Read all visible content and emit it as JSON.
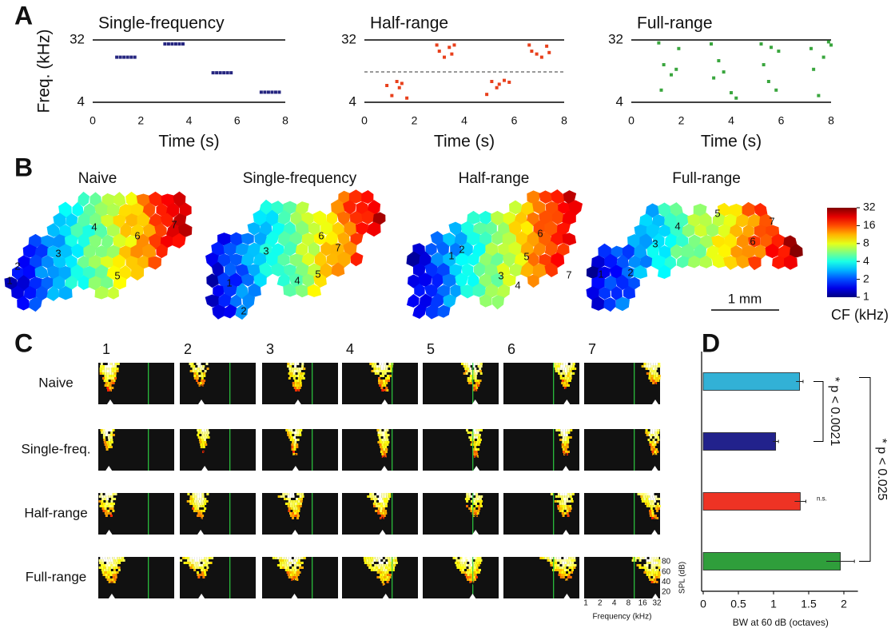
{
  "panel_labels": [
    "A",
    "B",
    "C",
    "D"
  ],
  "chart_data": [
    {
      "type": "scatter",
      "title": "Single-frequency",
      "xlabel": "Time (s)",
      "ylabel": "Freq. (kHz)",
      "x": [
        1.0,
        1.15,
        1.3,
        1.45,
        1.6,
        1.75,
        3.0,
        3.15,
        3.3,
        3.45,
        3.6,
        3.75,
        5.0,
        5.15,
        5.3,
        5.45,
        5.6,
        5.75,
        7.0,
        7.15,
        7.3,
        7.45,
        7.6,
        7.75
      ],
      "values": [
        18,
        18,
        18,
        18,
        18,
        18,
        28,
        28,
        28,
        28,
        28,
        28,
        10.7,
        10.7,
        10.7,
        10.7,
        10.7,
        10.7,
        5.6,
        5.6,
        5.6,
        5.6,
        5.6,
        5.6
      ],
      "color": "#262680",
      "xlim": [
        0,
        8
      ],
      "xticks": [
        0,
        2,
        4,
        6,
        8
      ],
      "ylim": [
        4,
        32
      ],
      "yticks": [
        4,
        32
      ],
      "log_y": true
    },
    {
      "type": "scatter",
      "title": "Half-range",
      "xlabel": "Time (s)",
      "x": [
        0.9,
        1.1,
        1.3,
        1.4,
        1.5,
        1.7,
        2.9,
        3.0,
        3.2,
        3.4,
        3.5,
        3.6,
        4.9,
        5.1,
        5.3,
        5.4,
        5.6,
        5.8,
        6.6,
        6.7,
        6.9,
        7.1,
        7.3,
        7.4
      ],
      "values": [
        7,
        5,
        8,
        6.5,
        7.5,
        4.6,
        27,
        22,
        18,
        25,
        20,
        27,
        5.2,
        8,
        6.5,
        7.3,
        8.3,
        7.8,
        27,
        22,
        20,
        18,
        26,
        21
      ],
      "color": "#e8401c",
      "xlim": [
        0,
        8
      ],
      "xticks": [
        0,
        2,
        4,
        6,
        8
      ],
      "ylim": [
        4,
        32
      ],
      "yticks": [
        4,
        32
      ],
      "log_y": true,
      "reference_line": 11
    },
    {
      "type": "scatter",
      "title": "Full-range",
      "xlabel": "Time (s)",
      "x": [
        1.1,
        1.2,
        1.3,
        1.6,
        1.8,
        1.9,
        3.2,
        3.3,
        3.5,
        3.7,
        4.0,
        4.2,
        5.2,
        5.3,
        5.5,
        5.6,
        5.8,
        5.9,
        7.2,
        7.3,
        7.5,
        7.7,
        7.9,
        8.0
      ],
      "values": [
        29,
        6,
        14,
        10,
        12,
        24,
        28,
        9,
        16,
        11,
        5.5,
        4.6,
        28,
        14,
        8,
        25,
        6,
        22,
        24,
        12,
        5,
        18,
        30,
        27
      ],
      "color": "#3aa63e",
      "xlim": [
        0,
        8
      ],
      "xticks": [
        0,
        2,
        4,
        6,
        8
      ],
      "ylim": [
        4,
        32
      ],
      "yticks": [
        4,
        32
      ],
      "log_y": true
    },
    {
      "type": "bar",
      "orientation": "horizontal",
      "xlabel": "BW at 60 dB (octaves)",
      "categories": [
        null,
        null,
        null,
        null
      ],
      "values": [
        1.37,
        1.03,
        1.38,
        1.95
      ],
      "errors": [
        0.05,
        0.04,
        0.08,
        0.2
      ],
      "colors": [
        "#32b1d6",
        "#22228c",
        "#ee3324",
        "#2f9e3b"
      ],
      "xlim": [
        0,
        2.2
      ],
      "xticks": [
        0,
        0.5,
        1,
        1.5,
        2
      ],
      "annotations": [
        "* p < 0.0021",
        "* p < 0.025",
        "n.s."
      ]
    }
  ],
  "panel_b": {
    "titles": [
      "Naive",
      "Single-frequency",
      "Half-range",
      "Full-range"
    ],
    "site_labels": [
      "1",
      "2",
      "3",
      "4",
      "5",
      "6",
      "7"
    ],
    "colorbar": {
      "label": "CF (kHz)",
      "lim": [
        1,
        32
      ],
      "ticks": [
        1,
        2,
        4,
        8,
        16,
        32
      ],
      "log": true
    },
    "scale_bar": "1 mm"
  },
  "panel_c": {
    "columns": [
      "1",
      "2",
      "3",
      "4",
      "5",
      "6",
      "7"
    ],
    "rows": [
      "Naive",
      "Single-freq.",
      "Half-range",
      "Full-range"
    ],
    "marker": "*",
    "spl_label": "SPL (dB)",
    "spl_ticks": [
      20,
      40,
      60,
      80
    ],
    "frequency_label": "Frequency (kHz)",
    "frequency_ticks": [
      1,
      2,
      4,
      8,
      16,
      32
    ]
  }
}
